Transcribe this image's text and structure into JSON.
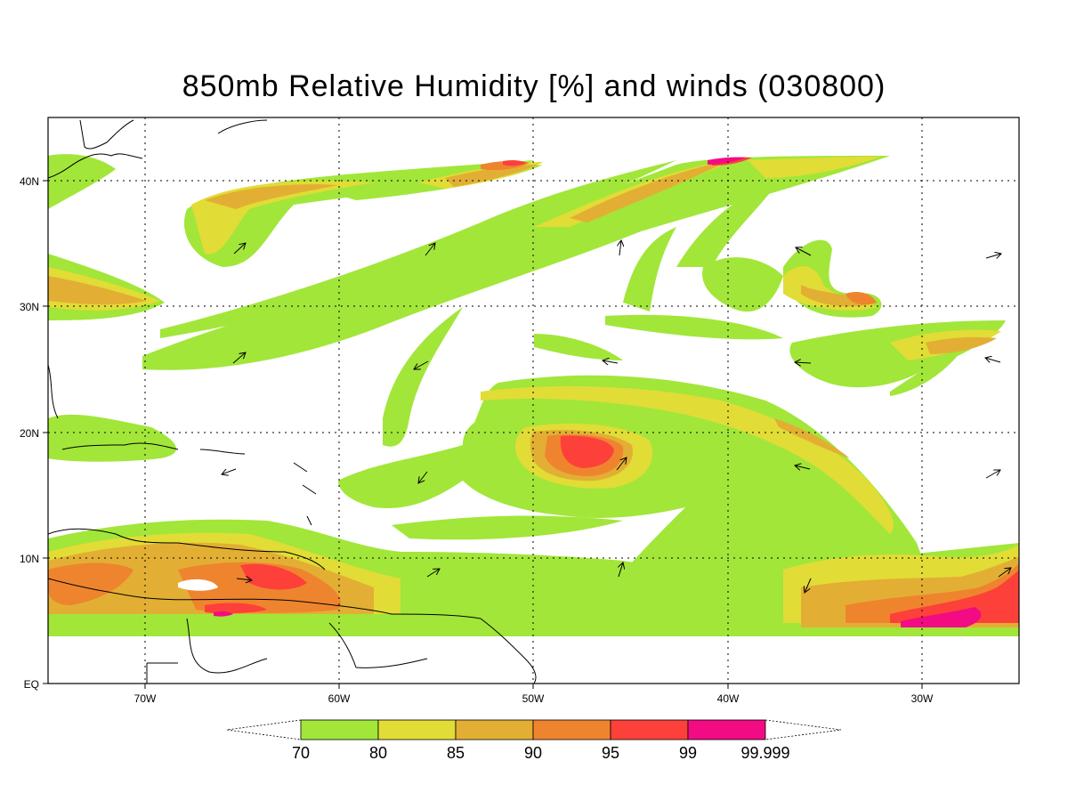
{
  "title": "850mb Relative Humidity [%] and winds (030800)",
  "y_tick_labels": [
    "40N",
    "30N",
    "20N",
    "10N",
    "EQ"
  ],
  "x_tick_labels": [
    "70W",
    "60W",
    "50W",
    "40W",
    "30W"
  ],
  "colorbar": {
    "labels": [
      "70",
      "80",
      "85",
      "90",
      "95",
      "99",
      "99.999"
    ],
    "colors": [
      "#a2e63a",
      "#e2dc36",
      "#e2af34",
      "#ef842e",
      "#fd403a",
      "#f20b82"
    ]
  }
}
